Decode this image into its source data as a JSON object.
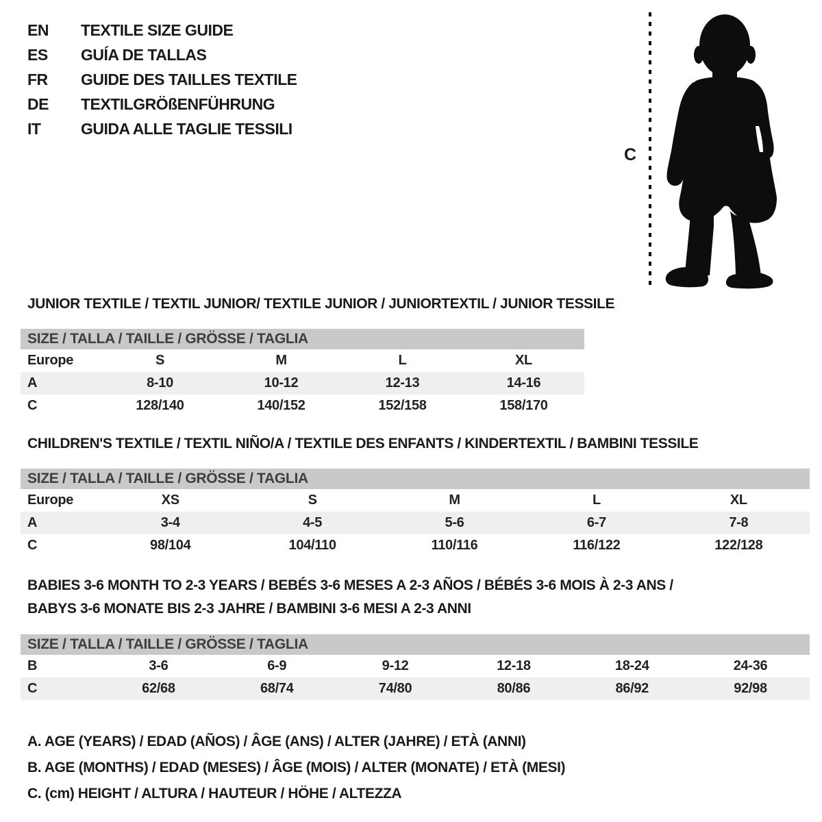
{
  "colors": {
    "page-bg": "#ffffff",
    "text": "#1a1a1a",
    "header-bar-bg": "#c9c9c9",
    "header-bar-text": "#3e3e3e",
    "row-shaded-bg": "#efefef",
    "silhouette": "#0d0d0d"
  },
  "languages": {
    "items": [
      {
        "code": "EN",
        "title": "TEXTILE SIZE GUIDE"
      },
      {
        "code": "ES",
        "title": "GUÍA DE TALLAS"
      },
      {
        "code": "FR",
        "title": "GUIDE DES TAILLES TEXTILE"
      },
      {
        "code": "DE",
        "title": "TEXTILGRÖßENFÜHRUNG"
      },
      {
        "code": "IT",
        "title": "GUIDA ALLE TAGLIE TESSILI"
      }
    ]
  },
  "figure": {
    "measure_label": "C",
    "description": "toddler-silhouette"
  },
  "sections": [
    {
      "title": "JUNIOR TEXTILE / TEXTIL JUNIOR/ TEXTILE JUNIOR / JUNIORTEXTIL / JUNIOR TESSILE",
      "size_header": "SIZE / TALLA / TAILLE / GRÖSSE / TAGLIA",
      "rows": [
        {
          "label": "Europe",
          "values": [
            "S",
            "M",
            "L",
            "XL"
          ]
        },
        {
          "label": "A",
          "values": [
            "8-10",
            "10-12",
            "12-13",
            "14-16"
          ]
        },
        {
          "label": "C",
          "values": [
            "128/140",
            "140/152",
            "152/158",
            "158/170"
          ]
        }
      ]
    },
    {
      "title": "CHILDREN'S TEXTILE / TEXTIL NIÑO/A / TEXTILE DES ENFANTS / KINDERTEXTIL / BAMBINI TESSILE",
      "size_header": "SIZE / TALLA / TAILLE / GRÖSSE / TAGLIA",
      "rows": [
        {
          "label": "Europe",
          "values": [
            "XS",
            "S",
            "M",
            "L",
            "XL"
          ]
        },
        {
          "label": "A",
          "values": [
            "3-4",
            "4-5",
            "5-6",
            "6-7",
            "7-8"
          ]
        },
        {
          "label": "C",
          "values": [
            "98/104",
            "104/110",
            "110/116",
            "116/122",
            "122/128"
          ]
        }
      ]
    },
    {
      "title_line1": "BABIES 3-6 MONTH TO 2-3 YEARS / BEBÉS 3-6 MESES A 2-3 AÑOS / BÉBÉS 3-6 MOIS À 2-3 ANS /",
      "title_line2": "BABYS 3-6 MONATE BIS 2-3 JAHRE / BAMBINI 3-6 MESI A 2-3 ANNI",
      "size_header": "SIZE / TALLA / TAILLE / GRÖSSE / TAGLIA",
      "rows": [
        {
          "label": "B",
          "values": [
            "3-6",
            "6-9",
            "9-12",
            "12-18",
            "18-24",
            "24-36"
          ]
        },
        {
          "label": "C",
          "values": [
            "62/68",
            "68/74",
            "74/80",
            "80/86",
            "86/92",
            "92/98"
          ]
        }
      ]
    }
  ],
  "legend": {
    "lines": [
      "A. AGE (YEARS) / EDAD (AÑOS) / ÂGE (ANS) / ALTER (JAHRE) / ETÀ (ANNI)",
      "B. AGE (MONTHS) / EDAD (MESES) / ÂGE (MOIS) / ALTER (MONATE) / ETÀ (MESI)",
      "C. (cm) HEIGHT / ALTURA / HAUTEUR / HÖHE / ALTEZZA"
    ]
  }
}
